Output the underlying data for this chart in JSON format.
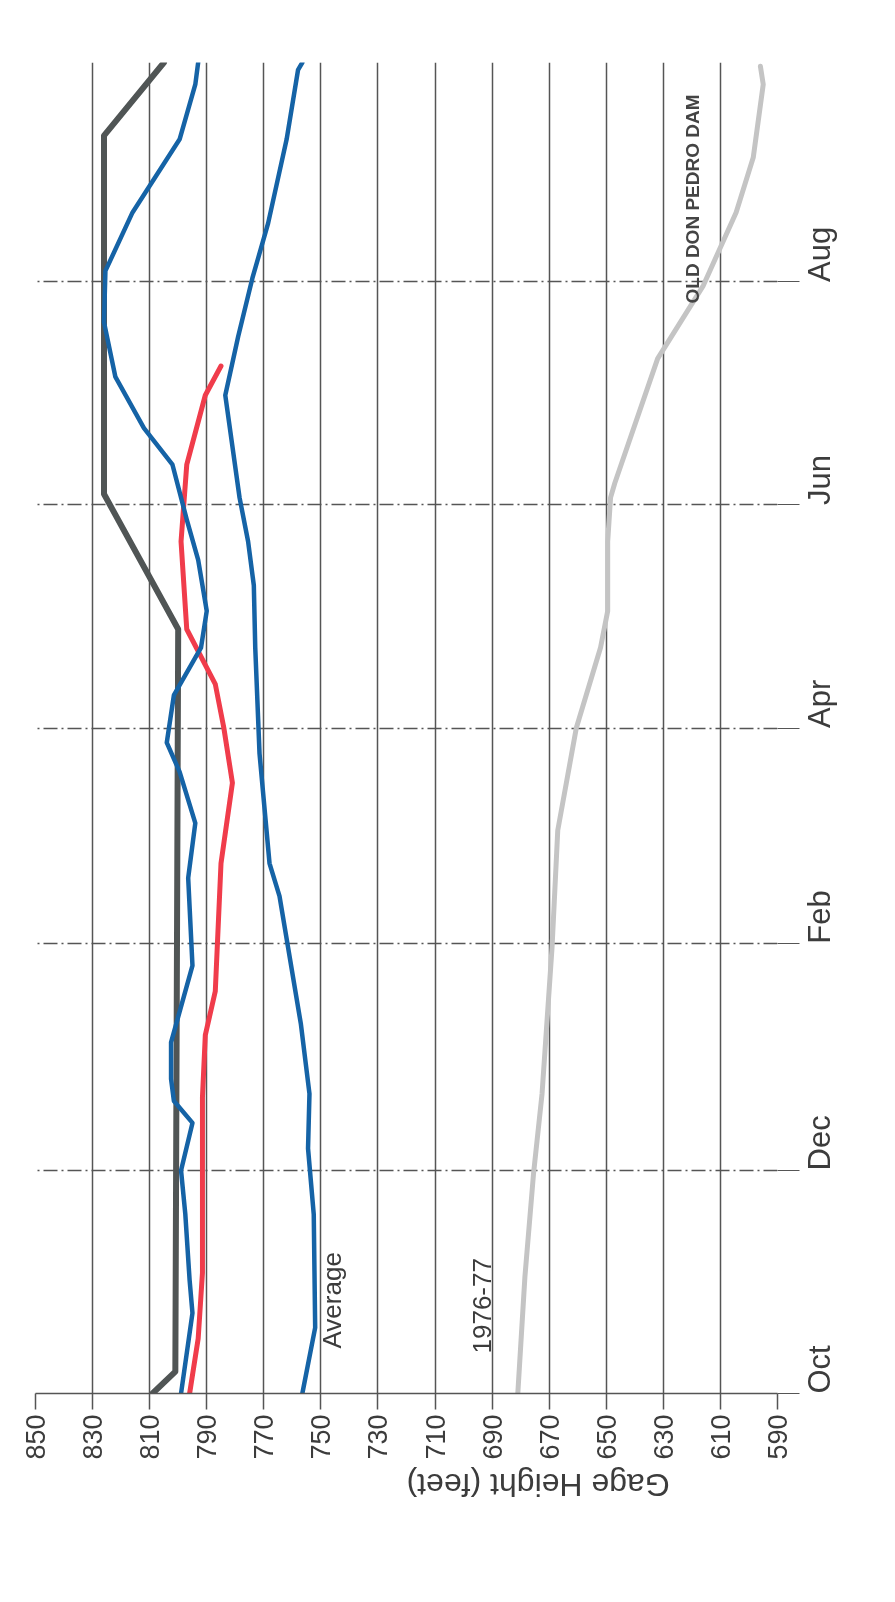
{
  "chart_data": {
    "type": "line",
    "orientation": "horizontal",
    "xlabel": "Gage Height (feet)",
    "xlim": [
      850,
      590
    ],
    "ylim": [
      "1976-10-01",
      "1977-09-30"
    ],
    "xticks": [
      850,
      830,
      810,
      790,
      770,
      750,
      730,
      710,
      690,
      670,
      650,
      630,
      610,
      590
    ],
    "yticks": [
      {
        "value": "1976-10-01",
        "label": "Oct"
      },
      {
        "value": "1976-12-01",
        "label": "Dec"
      },
      {
        "value": "1977-02-01",
        "label": "Feb"
      },
      {
        "value": "1977-04-01",
        "label": "Apr"
      },
      {
        "value": "1977-06-01",
        "label": "Jun"
      },
      {
        "value": "1977-08-01",
        "label": "Aug"
      }
    ],
    "grid": true,
    "legend": false,
    "line_style": "solid",
    "series": [
      {
        "color": "#505555",
        "x": [
          "1976-10-01",
          "1976-10-07",
          "1977-04-28",
          "1977-06-04",
          "1977-09-10",
          "1977-09-30"
        ],
        "values": [
          809,
          801,
          800,
          826,
          826,
          805
        ]
      },
      {
        "color": "#f03c4b",
        "x": [
          "1976-10-01",
          "1976-10-16",
          "1976-11-03",
          "1976-12-21",
          "1977-01-07",
          "1977-01-19",
          "1977-02-23",
          "1977-03-17",
          "1977-04-01",
          "1977-04-13",
          "1977-04-28",
          "1977-05-22",
          "1977-06-12",
          "1977-07-01",
          "1977-07-09"
        ],
        "values": [
          796,
          793,
          791.5,
          791.5,
          790.5,
          787,
          785,
          781,
          784,
          787,
          797,
          799,
          797,
          790.5,
          785
        ]
      },
      {
        "color": "#1563a6",
        "x": [
          "1976-10-01",
          "1976-10-23",
          "1976-11-01",
          "1976-11-19",
          "1976-12-01",
          "1976-12-14",
          "1976-12-20",
          "1976-12-26",
          "1977-01-05",
          "1977-01-26",
          "1977-02-19",
          "1977-03-06",
          "1977-03-20",
          "1977-03-28",
          "1977-04-10",
          "1977-04-23",
          "1977-05-03",
          "1977-05-17",
          "1977-05-28",
          "1977-06-12",
          "1977-06-22",
          "1977-07-06",
          "1977-07-21",
          "1977-08-04",
          "1977-08-20",
          "1977-09-09",
          "1977-09-24",
          "1977-09-30"
        ],
        "values": [
          799,
          795,
          796,
          797.5,
          799,
          795,
          801.5,
          802.5,
          802.5,
          795,
          796.5,
          794,
          799.5,
          804,
          801.5,
          792,
          790,
          793,
          797,
          802,
          812,
          822,
          826,
          825.5,
          816,
          799.5,
          794,
          793
        ]
      },
      {
        "name": "Average",
        "color": "#1563a6",
        "x": [
          "1976-10-01",
          "1976-10-19",
          "1976-11-19",
          "1976-12-07",
          "1976-12-22",
          "1977-01-10",
          "1977-02-14",
          "1977-02-23",
          "1977-03-25",
          "1977-04-23",
          "1977-05-10",
          "1977-05-22",
          "1977-06-03",
          "1977-07-01",
          "1977-07-17",
          "1977-08-02",
          "1977-08-17",
          "1977-09-09",
          "1977-09-28",
          "1977-09-30"
        ],
        "values": [
          756.5,
          752,
          752.5,
          754.5,
          754,
          757,
          764.5,
          768,
          771.5,
          773,
          773.5,
          775.5,
          778.5,
          783.5,
          779,
          774,
          768.5,
          762,
          758,
          756.5
        ]
      },
      {
        "name": "1976-77",
        "color": "#c4c4c4",
        "x": [
          "1976-10-01",
          "1976-11-02",
          "1976-11-30",
          "1976-12-22",
          "1977-01-31",
          "1977-03-04",
          "1977-04-01",
          "1977-04-23",
          "1977-05-03",
          "1977-05-22",
          "1977-06-03",
          "1977-06-07",
          "1977-07-11",
          "1977-07-31",
          "1977-08-20",
          "1977-09-04",
          "1977-09-24",
          "1977-09-29"
        ],
        "values": [
          681,
          678.5,
          675.5,
          672.5,
          669,
          667,
          660.5,
          652,
          649.5,
          649.5,
          648.5,
          647,
          632,
          616,
          604.5,
          598.5,
          595,
          596
        ]
      }
    ],
    "annotations": [
      "OLD DON PEDRO DAM"
    ]
  }
}
